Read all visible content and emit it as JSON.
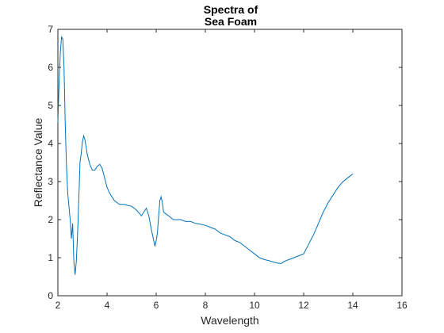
{
  "chart_data": {
    "type": "line",
    "title": [
      "Spectra of",
      "Sea Foam"
    ],
    "xlabel": "Wavelength",
    "ylabel": "Reflectance Value",
    "xlim": [
      2,
      16
    ],
    "ylim": [
      0,
      7
    ],
    "xticks": [
      "2",
      "4",
      "6",
      "8",
      "10",
      "12",
      "14",
      "16"
    ],
    "yticks": [
      "0",
      "1",
      "2",
      "3",
      "4",
      "5",
      "6",
      "7"
    ],
    "grid": false,
    "line_color": "#0072BD",
    "series": [
      {
        "x": [
          2.0,
          2.05,
          2.1,
          2.15,
          2.2,
          2.25,
          2.3,
          2.35,
          2.4,
          2.45,
          2.5,
          2.55,
          2.6,
          2.65,
          2.7,
          2.75,
          2.8,
          2.85,
          2.9,
          2.95,
          3.0,
          3.05,
          3.1,
          3.15,
          3.2,
          3.3,
          3.4,
          3.5,
          3.6,
          3.7,
          3.8,
          3.9,
          4.0,
          4.1,
          4.2,
          4.3,
          4.4,
          4.5,
          4.6,
          4.7,
          4.8,
          5.0,
          5.2,
          5.4,
          5.5,
          5.6,
          5.7,
          5.8,
          5.9,
          5.95,
          6.0,
          6.05,
          6.1,
          6.15,
          6.2,
          6.25,
          6.3,
          6.4,
          6.5,
          6.6,
          6.7,
          6.8,
          7.0,
          7.2,
          7.4,
          7.6,
          7.8,
          8.0,
          8.2,
          8.4,
          8.6,
          8.8,
          9.0,
          9.2,
          9.4,
          9.6,
          9.8,
          10.0,
          10.2,
          10.4,
          10.6,
          10.8,
          11.0,
          11.1,
          11.2,
          11.4,
          11.6,
          11.8,
          12.0,
          12.2,
          12.4,
          12.6,
          12.8,
          13.0,
          13.2,
          13.4,
          13.6,
          13.8,
          13.9,
          14.0
        ],
        "y": [
          4.55,
          5.6,
          6.4,
          6.8,
          6.75,
          6.0,
          4.5,
          3.4,
          2.7,
          2.35,
          2.0,
          1.5,
          1.9,
          0.9,
          0.55,
          0.9,
          1.6,
          2.5,
          3.5,
          3.75,
          4.05,
          4.2,
          4.1,
          3.9,
          3.7,
          3.45,
          3.3,
          3.3,
          3.4,
          3.45,
          3.35,
          3.1,
          2.85,
          2.7,
          2.6,
          2.5,
          2.45,
          2.4,
          2.4,
          2.4,
          2.38,
          2.35,
          2.25,
          2.1,
          2.2,
          2.3,
          2.1,
          1.75,
          1.45,
          1.3,
          1.45,
          1.65,
          2.1,
          2.5,
          2.6,
          2.45,
          2.2,
          2.15,
          2.1,
          2.05,
          2.0,
          2.0,
          2.0,
          1.95,
          1.95,
          1.9,
          1.88,
          1.85,
          1.8,
          1.75,
          1.65,
          1.6,
          1.55,
          1.45,
          1.4,
          1.3,
          1.2,
          1.1,
          1.0,
          0.95,
          0.92,
          0.88,
          0.85,
          0.85,
          0.9,
          0.95,
          1.0,
          1.05,
          1.1,
          1.35,
          1.6,
          1.9,
          2.2,
          2.45,
          2.65,
          2.85,
          3.0,
          3.1,
          3.15,
          3.2
        ]
      }
    ]
  }
}
